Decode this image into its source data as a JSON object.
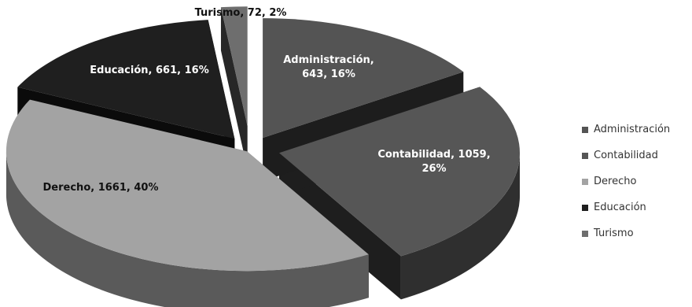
{
  "chart_data": {
    "type": "pie",
    "title": "",
    "categories": [
      "Administración",
      "Contabilidad",
      "Derecho",
      "Educación",
      "Turismo"
    ],
    "values": [
      643,
      1059,
      1661,
      661,
      72
    ],
    "percentages": [
      16,
      26,
      40,
      16,
      2
    ],
    "labels": [
      "Administración,\n643, 16%",
      "Contabilidad, 1059,\n26%",
      "Derecho, 1661, 40%",
      "Educación, 661, 16%",
      "Turismo, 72, 2%"
    ],
    "colors": [
      "#545454",
      "#565656",
      "#a3a3a3",
      "#1f1f1f",
      "#6e6e6e"
    ],
    "exploded": true,
    "three_d": true,
    "legend": "right"
  }
}
